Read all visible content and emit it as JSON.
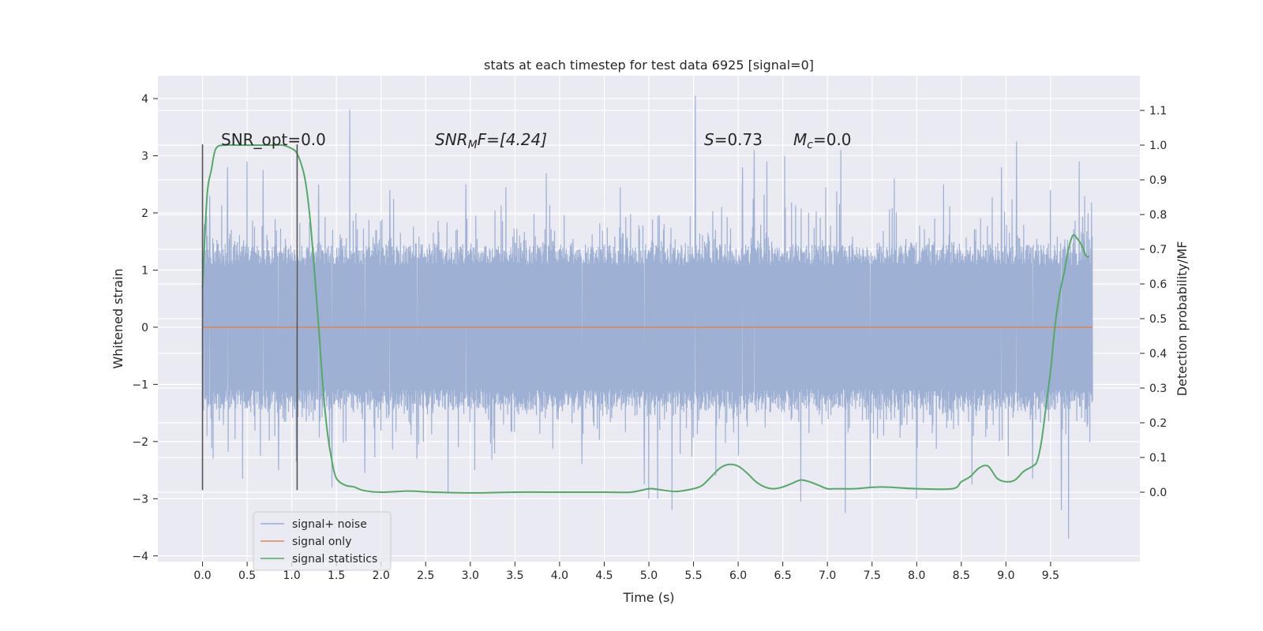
{
  "chart_data": {
    "type": "line",
    "title": "stats at each timestep for test data 6925 [signal=0]",
    "xlabel": "Time (s)",
    "ylabel": "Whitened strain",
    "y2label": "Detection probability/MF",
    "xlim": [
      -0.5,
      10.5
    ],
    "ylim": [
      -4.1,
      4.4
    ],
    "y2lim": [
      -0.2,
      1.2
    ],
    "xticks": [
      "0.0",
      "0.5",
      "1.0",
      "1.5",
      "2.0",
      "2.5",
      "3.0",
      "3.5",
      "4.0",
      "4.5",
      "5.0",
      "5.5",
      "6.0",
      "6.5",
      "7.0",
      "7.5",
      "8.0",
      "8.5",
      "9.0",
      "9.5"
    ],
    "yticks": [
      "4",
      "3",
      "2",
      "1",
      "0",
      "−1",
      "−2",
      "−3",
      "−4"
    ],
    "y2ticks": [
      "1.1",
      "1.0",
      "0.9",
      "0.8",
      "0.7",
      "0.6",
      "0.5",
      "0.4",
      "0.3",
      "0.2",
      "0.1",
      "0.0"
    ],
    "grid": true,
    "legend_position": "lower-left",
    "annotations": {
      "snr_opt": "SNR_opt=0.0",
      "snr_mf_symbol": "SNR",
      "snr_mf_sub": "M",
      "snr_mf_rest": "F=[4.24]",
      "s_symbol": "S",
      "s_rest": "=0.73",
      "mc_symbol": "M",
      "mc_sub": "c",
      "mc_rest": "=0.0"
    },
    "markers": {
      "x": [
        0.0,
        1.06
      ],
      "y_range": [
        -2.85,
        3.2
      ]
    },
    "series": [
      {
        "name": "signal+ noise",
        "color": "#9AADD1",
        "x_range": [
          0.0,
          9.97
        ],
        "band": [
          -1.45,
          1.45
        ],
        "spikes": [
          {
            "x": 0.02,
            "y": 1.8
          },
          {
            "x": 0.05,
            "y": -1.9
          },
          {
            "x": 0.08,
            "y": 2.3
          },
          {
            "x": 0.12,
            "y": -2.3
          },
          {
            "x": 0.28,
            "y": 2.8
          },
          {
            "x": 0.45,
            "y": -2.65
          },
          {
            "x": 0.5,
            "y": 2.9
          },
          {
            "x": 0.68,
            "y": 2.75
          },
          {
            "x": 0.85,
            "y": -2.5
          },
          {
            "x": 1.05,
            "y": -2.35
          },
          {
            "x": 1.3,
            "y": 2.5
          },
          {
            "x": 1.45,
            "y": -2.8
          },
          {
            "x": 1.65,
            "y": 3.8
          },
          {
            "x": 1.82,
            "y": -2.55
          },
          {
            "x": 2.1,
            "y": 2.4
          },
          {
            "x": 2.4,
            "y": -2.3
          },
          {
            "x": 2.75,
            "y": -2.9
          },
          {
            "x": 2.95,
            "y": 2.5
          },
          {
            "x": 3.05,
            "y": -2.5
          },
          {
            "x": 3.4,
            "y": 2.45
          },
          {
            "x": 3.85,
            "y": 2.7
          },
          {
            "x": 4.25,
            "y": -2.4
          },
          {
            "x": 4.68,
            "y": 2.45
          },
          {
            "x": 4.95,
            "y": -2.75
          },
          {
            "x": 5.0,
            "y": -3.0
          },
          {
            "x": 5.1,
            "y": -3.0
          },
          {
            "x": 5.26,
            "y": -3.2
          },
          {
            "x": 5.52,
            "y": 4.05
          },
          {
            "x": 5.75,
            "y": -2.6
          },
          {
            "x": 6.05,
            "y": 2.8
          },
          {
            "x": 6.18,
            "y": 3.1
          },
          {
            "x": 6.32,
            "y": 2.9
          },
          {
            "x": 6.52,
            "y": 3.0
          },
          {
            "x": 6.7,
            "y": -3.05
          },
          {
            "x": 6.98,
            "y": 2.45
          },
          {
            "x": 7.15,
            "y": 3.1
          },
          {
            "x": 7.2,
            "y": -3.25
          },
          {
            "x": 7.48,
            "y": -2.8
          },
          {
            "x": 7.75,
            "y": 2.6
          },
          {
            "x": 8.0,
            "y": -3.0
          },
          {
            "x": 8.3,
            "y": 2.5
          },
          {
            "x": 8.62,
            "y": -2.75
          },
          {
            "x": 8.95,
            "y": 2.8
          },
          {
            "x": 9.12,
            "y": 3.25
          },
          {
            "x": 9.3,
            "y": -2.65
          },
          {
            "x": 9.5,
            "y": 2.4
          },
          {
            "x": 9.62,
            "y": -3.2
          },
          {
            "x": 9.7,
            "y": -3.7
          },
          {
            "x": 9.82,
            "y": 2.9
          },
          {
            "x": 9.92,
            "y": 2.0
          }
        ]
      },
      {
        "name": "signal only",
        "color": "#DD8452",
        "x": [
          0.0,
          9.97
        ],
        "y": [
          0.0,
          0.0
        ]
      },
      {
        "name": "signal statistics",
        "color": "#55A868",
        "axis": "right",
        "x": [
          0.0,
          0.05,
          0.1,
          0.15,
          0.25,
          0.4,
          0.6,
          0.8,
          0.9,
          1.0,
          1.05,
          1.1,
          1.15,
          1.2,
          1.25,
          1.3,
          1.35,
          1.4,
          1.45,
          1.5,
          1.6,
          1.7,
          1.8,
          2.0,
          2.3,
          2.6,
          3.0,
          3.5,
          4.0,
          4.5,
          4.8,
          5.0,
          5.1,
          5.3,
          5.5,
          5.6,
          5.7,
          5.8,
          5.9,
          6.0,
          6.1,
          6.2,
          6.3,
          6.4,
          6.5,
          6.6,
          6.7,
          6.8,
          6.9,
          7.0,
          7.1,
          7.3,
          7.6,
          8.0,
          8.4,
          8.5,
          8.6,
          8.7,
          8.8,
          8.9,
          9.0,
          9.1,
          9.2,
          9.3,
          9.35,
          9.4,
          9.45,
          9.5,
          9.55,
          9.6,
          9.65,
          9.7,
          9.75,
          9.8,
          9.85,
          9.9,
          9.93
        ],
        "y": [
          0.59,
          0.85,
          0.93,
          0.99,
          1.0,
          1.0,
          1.0,
          1.0,
          1.0,
          0.99,
          0.98,
          0.95,
          0.9,
          0.8,
          0.65,
          0.48,
          0.3,
          0.17,
          0.09,
          0.04,
          0.02,
          0.015,
          0.005,
          0.0,
          0.003,
          0.0,
          -0.002,
          0.0,
          0.0,
          0.0,
          0.0,
          0.01,
          0.008,
          0.002,
          0.01,
          0.02,
          0.045,
          0.07,
          0.08,
          0.075,
          0.055,
          0.03,
          0.015,
          0.01,
          0.015,
          0.025,
          0.035,
          0.03,
          0.02,
          0.01,
          0.01,
          0.01,
          0.015,
          0.01,
          0.01,
          0.03,
          0.045,
          0.07,
          0.075,
          0.04,
          0.03,
          0.035,
          0.06,
          0.075,
          0.09,
          0.15,
          0.25,
          0.35,
          0.48,
          0.57,
          0.63,
          0.7,
          0.74,
          0.73,
          0.71,
          0.68,
          0.68
        ]
      }
    ]
  }
}
